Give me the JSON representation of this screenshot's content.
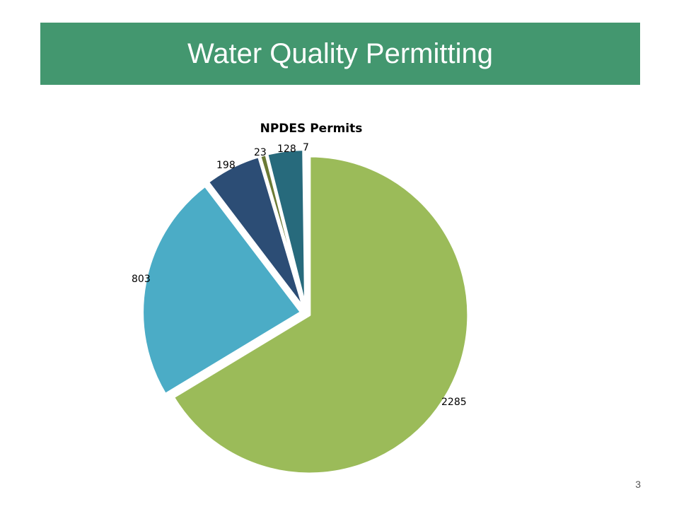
{
  "slide": {
    "title": "Water Quality Permitting",
    "page_number": "3",
    "banner_color": "#43976f"
  },
  "chart_data": {
    "type": "pie",
    "title": "NPDES Permits",
    "legend": "none",
    "start_angle_deg": 0,
    "direction": "clockwise",
    "slices": [
      {
        "value": 2285,
        "label": "2285",
        "color": "#9bbb59"
      },
      {
        "value": 803,
        "label": "803",
        "color": "#4bacc6"
      },
      {
        "value": 198,
        "label": "198",
        "color": "#2c4d75"
      },
      {
        "value": 23,
        "label": "23",
        "color": "#6b7a35"
      },
      {
        "value": 128,
        "label": "128",
        "color": "#276a7c"
      },
      {
        "value": 7,
        "label": "7",
        "color": "#3c8ca3"
      }
    ]
  }
}
